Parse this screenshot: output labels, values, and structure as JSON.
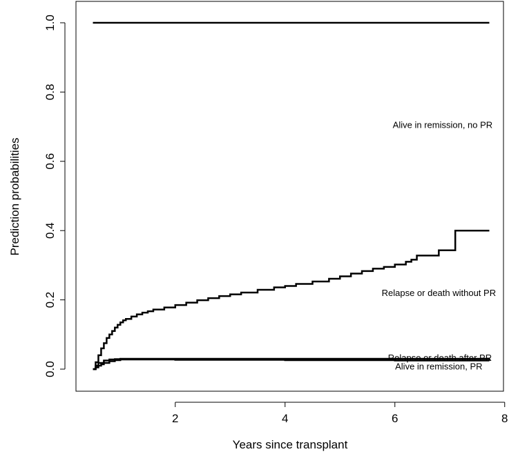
{
  "chart_data": {
    "type": "line",
    "title": "",
    "xlabel": "Years since transplant",
    "ylabel": "Prediction probabilities",
    "xlim": [
      0.5,
      7.72
    ],
    "ylim": [
      0,
      1
    ],
    "x_ticks": [
      2,
      4,
      6,
      8
    ],
    "y_ticks": [
      0.0,
      0.2,
      0.4,
      0.6,
      0.8,
      1.0
    ],
    "x_tick_labels": [
      "2",
      "4",
      "6",
      "8"
    ],
    "y_tick_labels": [
      "0.0",
      "0.2",
      "0.4",
      "0.6",
      "0.8",
      "1.0"
    ],
    "grid": false,
    "legend": "none",
    "step": true,
    "line_color": "#000000",
    "series": [
      {
        "name": "Alive in remission, no PR",
        "x": [
          0.5,
          7.72
        ],
        "y": [
          1.0,
          1.0
        ]
      },
      {
        "name": "Relapse or death without PR",
        "x": [
          0.5,
          0.55,
          0.6,
          0.65,
          0.7,
          0.75,
          0.8,
          0.85,
          0.9,
          0.95,
          1.0,
          1.05,
          1.1,
          1.2,
          1.3,
          1.4,
          1.5,
          1.6,
          1.8,
          2.0,
          2.2,
          2.4,
          2.6,
          2.8,
          3.0,
          3.2,
          3.5,
          3.8,
          4.0,
          4.2,
          4.5,
          4.8,
          5.0,
          5.2,
          5.4,
          5.6,
          5.8,
          6.0,
          6.2,
          6.3,
          6.4,
          6.6,
          6.8,
          6.95,
          7.1,
          7.72
        ],
        "y": [
          0.0,
          0.02,
          0.04,
          0.06,
          0.075,
          0.09,
          0.1,
          0.11,
          0.12,
          0.128,
          0.135,
          0.141,
          0.145,
          0.152,
          0.158,
          0.163,
          0.167,
          0.172,
          0.178,
          0.185,
          0.192,
          0.199,
          0.205,
          0.211,
          0.216,
          0.221,
          0.229,
          0.236,
          0.24,
          0.246,
          0.253,
          0.261,
          0.268,
          0.276,
          0.283,
          0.29,
          0.295,
          0.302,
          0.31,
          0.316,
          0.328,
          0.328,
          0.343,
          0.343,
          0.4,
          0.4
        ]
      },
      {
        "name": "Relapse or death after PR",
        "x": [
          0.5,
          0.55,
          0.6,
          0.7,
          0.8,
          0.9,
          1.0,
          1.2,
          2.0,
          4.0,
          6.0,
          7.72
        ],
        "y": [
          0.0,
          0.01,
          0.018,
          0.025,
          0.028,
          0.029,
          0.03,
          0.03,
          0.03,
          0.03,
          0.03,
          0.031
        ]
      },
      {
        "name": "Alive in remission, PR",
        "x": [
          0.5,
          0.55,
          0.6,
          0.65,
          0.7,
          0.8,
          0.9,
          1.0,
          1.2,
          2.0,
          4.0,
          6.0,
          7.72
        ],
        "y": [
          0.0,
          0.005,
          0.01,
          0.014,
          0.018,
          0.023,
          0.026,
          0.028,
          0.028,
          0.027,
          0.026,
          0.025,
          0.024
        ]
      }
    ],
    "annotations": [
      {
        "text": "Alive in remission, no PR",
        "x": 6.87,
        "y": 0.703
      },
      {
        "text": "Relapse or death without PR",
        "x": 6.8,
        "y": 0.218
      },
      {
        "text": "Relapse or death after PR",
        "x": 6.82,
        "y": 0.031
      },
      {
        "text": "Alive in remission, PR",
        "x": 6.8,
        "y": 0.006
      }
    ]
  }
}
